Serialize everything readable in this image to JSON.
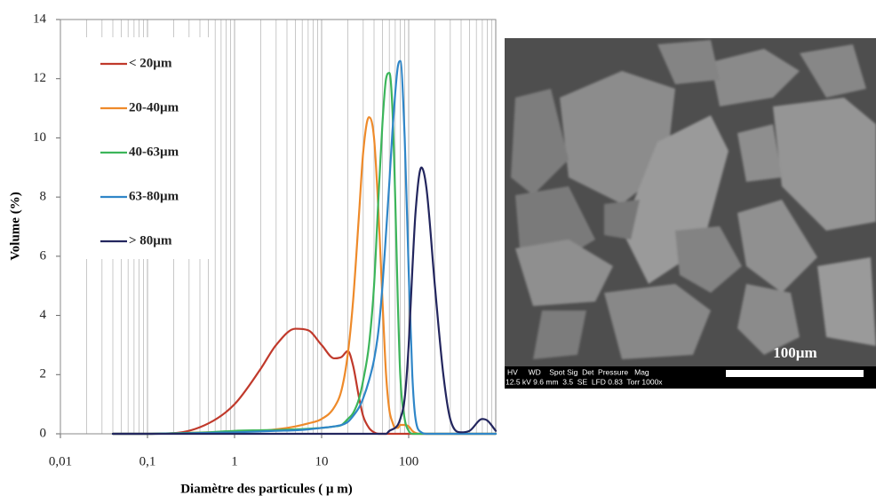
{
  "chart_data": {
    "type": "line",
    "xlabel": "Diamètre des particules ( μ m)",
    "ylabel": "Volume (%)",
    "xscale": "log",
    "grid": true,
    "legend": "upper-left",
    "xlim": [
      0.01,
      1000
    ],
    "ylim": [
      0,
      14
    ],
    "xticks": [
      {
        "value": 0.01,
        "label": "0,01"
      },
      {
        "value": 0.1,
        "label": "0,1"
      },
      1,
      10,
      100
    ],
    "xminorticks": [
      0.02,
      0.03,
      0.04,
      0.05,
      0.06,
      0.07,
      0.08,
      0.09,
      0.2,
      0.3,
      0.4,
      0.5,
      0.6,
      0.7,
      0.8,
      0.9,
      2,
      3,
      4,
      5,
      6,
      7,
      8,
      9,
      20,
      30,
      40,
      50,
      60,
      70,
      80,
      90,
      200,
      300,
      400,
      500,
      600,
      700,
      800,
      900
    ],
    "yticks": [
      0,
      2,
      4,
      6,
      8,
      10,
      12,
      14
    ],
    "x": [
      0.04,
      0.1,
      0.2,
      0.5,
      1,
      2,
      3,
      5,
      7,
      10,
      14,
      17,
      20,
      23,
      27,
      30,
      35,
      40,
      45,
      50,
      55,
      60,
      65,
      70,
      75,
      80,
      90,
      100,
      110,
      120,
      140,
      160,
      200,
      250,
      300,
      400,
      500,
      700,
      800,
      1000
    ],
    "series": [
      {
        "name": "< 20µm",
        "color": "#c0392b",
        "values": [
          0,
          0,
          0.02,
          0.35,
          1.0,
          2.2,
          3.0,
          3.55,
          3.5,
          3.0,
          2.55,
          2.6,
          2.8,
          2.3,
          1.2,
          0.6,
          0.2,
          0.05,
          0,
          0,
          0,
          0,
          0,
          0,
          0,
          0,
          0,
          0,
          0,
          0,
          0,
          0,
          0,
          0,
          0,
          0,
          0,
          0,
          0,
          0
        ]
      },
      {
        "name": "20-40µm",
        "color": "#ee8a2a",
        "values": [
          0,
          0,
          0.02,
          0.05,
          0.07,
          0.1,
          0.15,
          0.25,
          0.35,
          0.5,
          0.9,
          1.5,
          2.7,
          4.5,
          7.5,
          9.5,
          10.7,
          10.0,
          7.5,
          4.5,
          2.0,
          0.8,
          0.4,
          0.2,
          0.2,
          0.3,
          0.3,
          0.25,
          0.1,
          0.03,
          0,
          0,
          0,
          0,
          0,
          0,
          0,
          0,
          0,
          0
        ]
      },
      {
        "name": "40-63µm",
        "color": "#3cb55a",
        "values": [
          0,
          0,
          0.02,
          0.05,
          0.1,
          0.12,
          0.13,
          0.15,
          0.17,
          0.2,
          0.25,
          0.3,
          0.5,
          0.7,
          1.2,
          1.8,
          3.0,
          5.0,
          8.0,
          10.5,
          12.0,
          12.2,
          11.0,
          8.0,
          4.5,
          2.0,
          0.5,
          0.1,
          0,
          0,
          0,
          0,
          0,
          0,
          0,
          0,
          0,
          0,
          0,
          0
        ]
      },
      {
        "name": "63-80µm",
        "color": "#2f86c8",
        "values": [
          0,
          0,
          0.01,
          0.03,
          0.05,
          0.08,
          0.1,
          0.12,
          0.15,
          0.2,
          0.25,
          0.3,
          0.4,
          0.6,
          0.9,
          1.2,
          1.8,
          2.5,
          3.5,
          5.0,
          6.8,
          8.5,
          10.2,
          11.5,
          12.4,
          12.6,
          10.0,
          5.5,
          2.0,
          0.5,
          0.05,
          0,
          0,
          0,
          0,
          0,
          0,
          0,
          0,
          0
        ]
      },
      {
        "name": "> 80µm",
        "color": "#23265e",
        "values": [
          0,
          0,
          0,
          0,
          0,
          0,
          0,
          0,
          0,
          0,
          0,
          0,
          0,
          0,
          0,
          0,
          0,
          0,
          0,
          0,
          0,
          0.1,
          0.15,
          0.2,
          0.3,
          0.5,
          1.2,
          3.0,
          5.5,
          7.5,
          9.0,
          8.3,
          5.0,
          2.0,
          0.5,
          0.05,
          0.1,
          0.5,
          0.45,
          0.1
        ]
      }
    ]
  },
  "image": {
    "scale_label": "100µm",
    "info_header": "HV     WD    Spot Sig  Det  Pressure   Mag",
    "info_values": "12.5 kV 9.6 mm  3.5  SE  LFD 0.83  Torr 1000x"
  }
}
